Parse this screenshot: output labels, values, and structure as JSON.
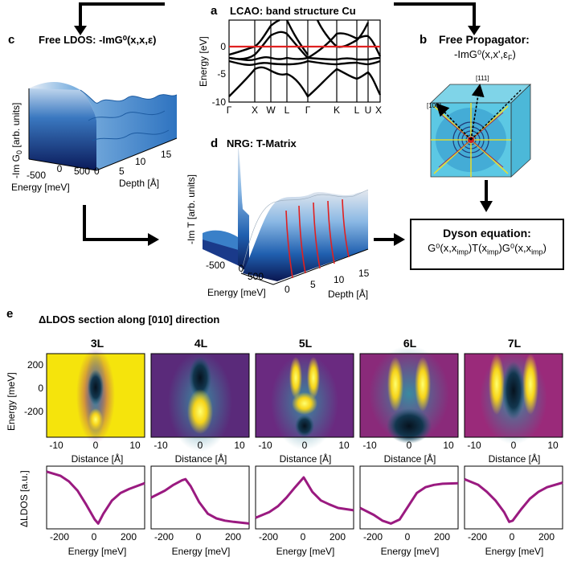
{
  "panels": {
    "a": {
      "letter": "a",
      "title": "LCAO: band structure Cu",
      "ylabel": "Energy [eV]",
      "yticks": [
        "0",
        "-5",
        "-10"
      ],
      "xticks": [
        "Γ",
        "X",
        "W",
        "L",
        "Γ",
        "K",
        "L",
        "U",
        "X"
      ]
    },
    "b": {
      "letter": "b",
      "title": "Free Propagator:",
      "subtitle": "-ImG⁰(x,x',ε",
      "subtitle_sub": "F",
      "subtitle_end": ")",
      "dir1": "[111]",
      "dir2": "[100]"
    },
    "c": {
      "letter": "c",
      "title": "Free LDOS: -ImG⁰(x,x,ε)",
      "zlabel": "-Im G",
      "zlabel_sub": "0",
      "zlabel_unit": "[arb. units]",
      "xlabel": "Energy [meV]",
      "ylabel": "Depth [Å]",
      "xticks": [
        "-500",
        "0",
        "500"
      ],
      "yticks": [
        "0",
        "5",
        "10",
        "15"
      ]
    },
    "d": {
      "letter": "d",
      "title": "NRG: T-Matrix",
      "zlabel": "-Im T [arb. units]",
      "xlabel": "Energy [meV]",
      "ylabel": "Depth [Å]",
      "xticks": [
        "-500",
        "0",
        "500"
      ],
      "yticks": [
        "0",
        "5",
        "10",
        "15"
      ]
    },
    "dyson": {
      "title": "Dyson equation:",
      "eq_a": "G⁰(x,x",
      "eq_a_sub": "imp",
      "eq_b": ")T(x",
      "eq_b_sub": "imp",
      "eq_c": ")G⁰(x,x",
      "eq_c_sub": "imp",
      "eq_d": ")"
    },
    "e": {
      "letter": "e",
      "title": "ΔLDOS section along [010] direction",
      "maps": [
        {
          "label": "3L"
        },
        {
          "label": "4L"
        },
        {
          "label": "5L"
        },
        {
          "label": "6L"
        },
        {
          "label": "7L"
        }
      ],
      "map_ylabel": "Energy [meV]",
      "map_yticks": [
        "200",
        "0",
        "-200"
      ],
      "map_xlabel": "Distance [Å]",
      "map_xticks": [
        "-10",
        "0",
        "10"
      ],
      "line_ylabel": "ΔLDOS [a.u.]",
      "line_xlabel": "Energy [meV]",
      "line_xticks": [
        "-200",
        "0",
        "200"
      ]
    }
  },
  "chart_data": [
    {
      "type": "line",
      "title": "3L",
      "xlabel": "Energy [meV]",
      "ylabel": "ΔLDOS [a.u.]",
      "xlim": [
        -280,
        290
      ],
      "x": [
        -280,
        -200,
        -150,
        -100,
        -50,
        0,
        20,
        50,
        100,
        150,
        200,
        290
      ],
      "values": [
        0.95,
        0.88,
        0.78,
        0.62,
        0.38,
        0.12,
        0.05,
        0.22,
        0.45,
        0.58,
        0.65,
        0.75
      ]
    },
    {
      "type": "line",
      "title": "4L",
      "xlabel": "Energy [meV]",
      "ylabel": "ΔLDOS [a.u.]",
      "xlim": [
        -280,
        290
      ],
      "x": [
        -280,
        -200,
        -150,
        -100,
        -80,
        -50,
        0,
        50,
        100,
        150,
        200,
        290
      ],
      "values": [
        0.5,
        0.62,
        0.72,
        0.8,
        0.82,
        0.7,
        0.42,
        0.22,
        0.14,
        0.1,
        0.08,
        0.05
      ]
    },
    {
      "type": "line",
      "title": "5L",
      "xlabel": "Energy [meV]",
      "ylabel": "ΔLDOS [a.u.]",
      "xlim": [
        -280,
        290
      ],
      "x": [
        -280,
        -200,
        -150,
        -100,
        -50,
        0,
        50,
        100,
        150,
        200,
        290
      ],
      "values": [
        0.15,
        0.25,
        0.35,
        0.5,
        0.68,
        0.85,
        0.6,
        0.45,
        0.38,
        0.32,
        0.28
      ]
    },
    {
      "type": "line",
      "title": "6L",
      "xlabel": "Energy [meV]",
      "ylabel": "ΔLDOS [a.u.]",
      "xlim": [
        -280,
        290
      ],
      "x": [
        -280,
        -200,
        -150,
        -100,
        -50,
        0,
        50,
        100,
        150,
        200,
        290
      ],
      "values": [
        0.32,
        0.2,
        0.1,
        0.05,
        0.12,
        0.35,
        0.58,
        0.68,
        0.72,
        0.74,
        0.75
      ]
    },
    {
      "type": "line",
      "title": "7L",
      "xlabel": "Energy [meV]",
      "ylabel": "ΔLDOS [a.u.]",
      "xlim": [
        -280,
        290
      ],
      "x": [
        -280,
        -200,
        -150,
        -100,
        -50,
        -20,
        0,
        50,
        100,
        150,
        200,
        290
      ],
      "values": [
        0.82,
        0.72,
        0.6,
        0.45,
        0.25,
        0.08,
        0.1,
        0.3,
        0.48,
        0.6,
        0.68,
        0.76
      ]
    }
  ]
}
